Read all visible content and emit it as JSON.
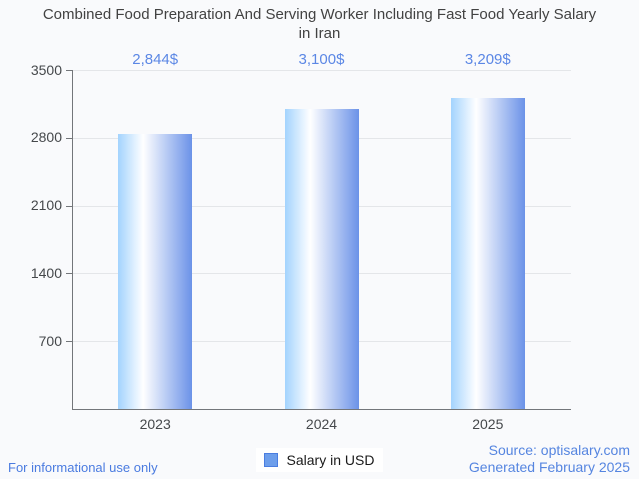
{
  "chart_data": {
    "type": "bar",
    "title": "Combined Food Preparation And Serving Worker Including Fast Food Yearly Salary in Iran",
    "title_lines": [
      "Combined Food Preparation And Serving Worker Including Fast Food Yearly Salary",
      "in Iran"
    ],
    "categories": [
      "2023",
      "2024",
      "2025"
    ],
    "series": [
      {
        "name": "Salary in USD",
        "values": [
          2844,
          3100,
          3209
        ]
      }
    ],
    "value_labels": [
      "2,844$",
      "3,100$",
      "3,209$"
    ],
    "xlabel": "",
    "ylabel": "",
    "ylim": [
      0,
      3500
    ],
    "yticks": [
      700,
      1400,
      2100,
      2800,
      3500
    ],
    "ytick_labels": [
      "700",
      "1400",
      "2100",
      "2800",
      "3500"
    ],
    "grid": "horizontal",
    "legend_position": "bottom-center"
  },
  "legend": {
    "label": "Salary in USD",
    "swatch_color": "#6d9eeb",
    "swatch_border_color": "#4a7de0"
  },
  "footer": {
    "disclaimer": "For informational use only",
    "source": "Source: optisalary.com",
    "generated": "Generated February 2025"
  },
  "colors": {
    "background": "#f9fafc",
    "title_text": "#424242",
    "axis_text": "#45484b",
    "value_label_text": "#5b87e5",
    "footer_text": "#4a7be0",
    "gridline": "#e4e6e9",
    "axis_line": "#73767a",
    "bar_gradient_left": "#a3d3fe",
    "bar_gradient_mid": "#ffffff",
    "bar_gradient_right": "#6b92e8",
    "legend_background": "#ffffff"
  }
}
